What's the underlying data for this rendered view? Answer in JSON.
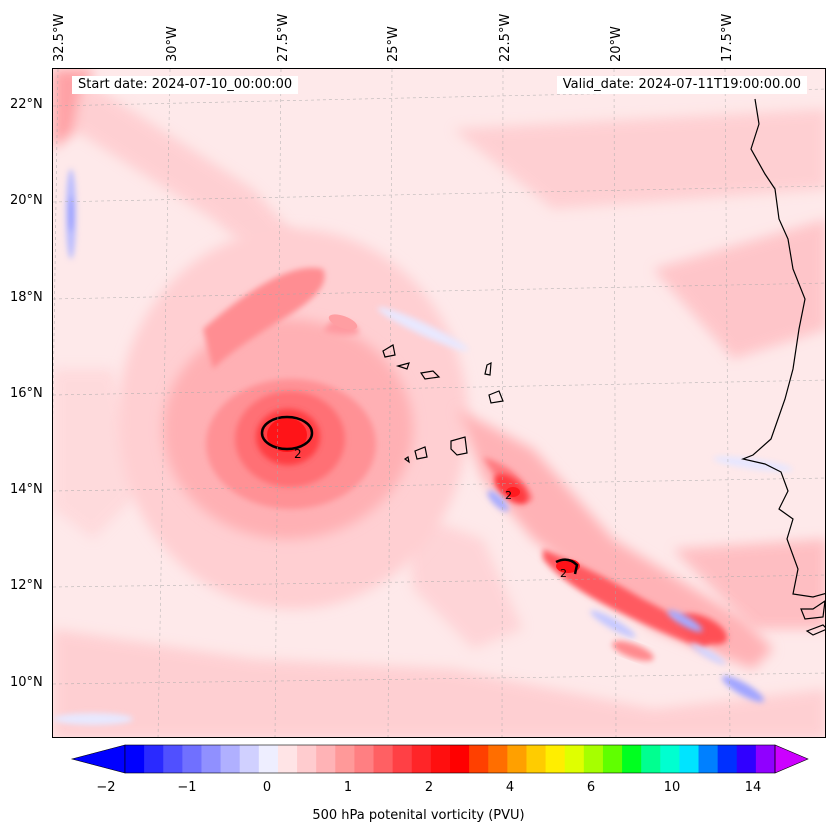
{
  "map": {
    "title_left": "Start date: 2024-07-10_00:00:00",
    "title_right": "Valid_date: 2024-07-11T19:00:00.00",
    "longitude_labels": [
      "32.5°W",
      "30°W",
      "27.5°W",
      "25°W",
      "22.5°W",
      "20°W",
      "17.5°W"
    ],
    "latitude_labels": [
      "22°N",
      "20°N",
      "18°N",
      "16°N",
      "14°N",
      "12°N",
      "10°N"
    ],
    "contour_label": "2",
    "background_color": "#fee9ea",
    "coastline_color": "#000000"
  },
  "colorbar": {
    "label": "500 hPa potenital vorticity (PVU)",
    "tick_labels": [
      "−2",
      "−1",
      "0",
      "1",
      "2",
      "4",
      "6",
      "10",
      "14"
    ],
    "colors": [
      "#0000ff",
      "#2a2aff",
      "#5050ff",
      "#7070ff",
      "#9090ff",
      "#b0b0ff",
      "#d0d0ff",
      "#eeeeff",
      "#ffe4e6",
      "#ffcccf",
      "#ffb3b6",
      "#ff9999",
      "#ff7f82",
      "#ff6063",
      "#ff4045",
      "#ff2528",
      "#ff0f0f",
      "#ff0000",
      "#ff4000",
      "#ff6e00",
      "#ffa000",
      "#ffcc00",
      "#ffee00",
      "#dfff00",
      "#a6ff00",
      "#60ff00",
      "#00ff20",
      "#00ff90",
      "#00ffd0",
      "#00e4ff",
      "#0080ff",
      "#0030ff",
      "#3000ff",
      "#9000ff"
    ],
    "end_colors": {
      "low": "#0000ff",
      "high": "#cc00ff"
    }
  }
}
